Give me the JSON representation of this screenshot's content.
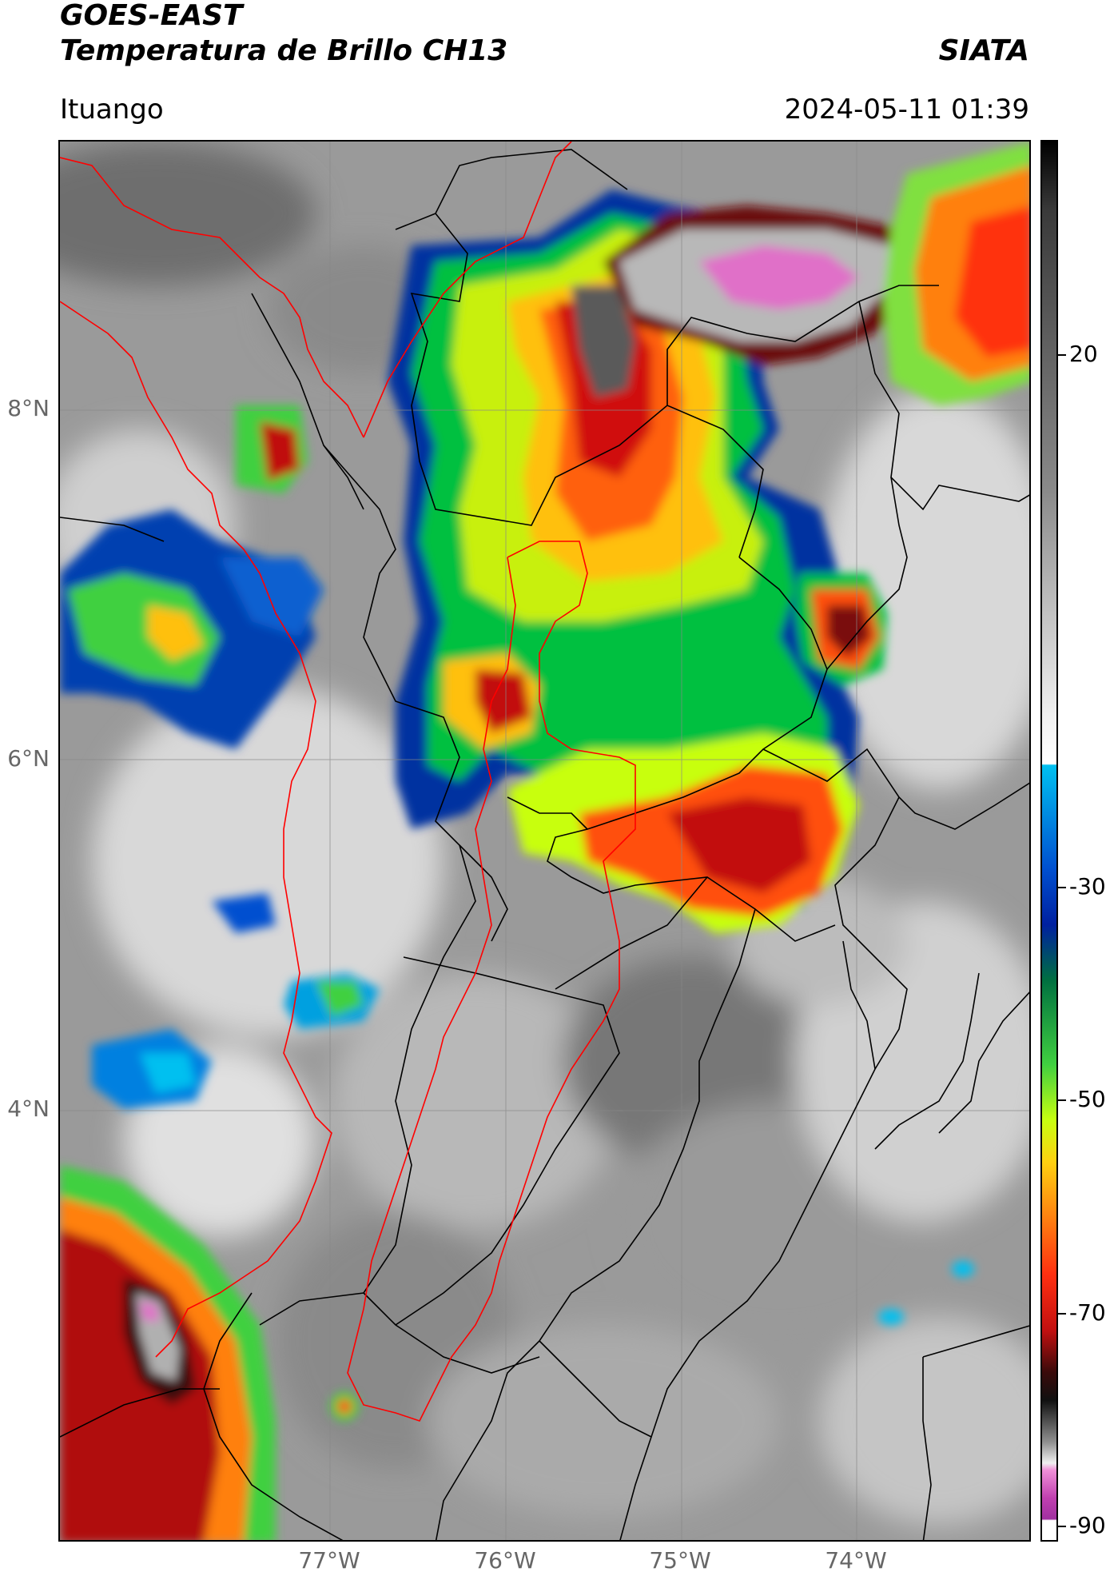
{
  "header": {
    "title_line1": "GOES-EAST",
    "title_line2": "Temperatura de Brillo CH13",
    "brand": "SIATA",
    "location": "Ituango",
    "datetime": "2024-05-11 01:39"
  },
  "map": {
    "lat_labels": [
      "8°N",
      "6°N",
      "4°N"
    ],
    "lon_labels": [
      "77°W",
      "76°W",
      "75°W",
      "74°W"
    ],
    "background_color": "#9a9a9a",
    "border_colors": {
      "country": "#ff0000",
      "regions": "#000000"
    }
  },
  "colorbar": {
    "tick_labels": [
      "20",
      "-30",
      "-50",
      "-70",
      "-90"
    ],
    "colors": [
      "#ffffff",
      "#c0c0c0",
      "#8a8a8a",
      "#505050",
      "#1a1a1a",
      "#7a1010",
      "#c21010",
      "#ff3010",
      "#ff8010",
      "#ffd010",
      "#c8ff10",
      "#40d040",
      "#008040",
      "#0020a0",
      "#0050d0",
      "#00b0f0",
      "#f0f0f0",
      "#b0b0b0",
      "#606060",
      "#101010",
      "#e060c0",
      "#a030a0",
      "#ffffff"
    ]
  }
}
